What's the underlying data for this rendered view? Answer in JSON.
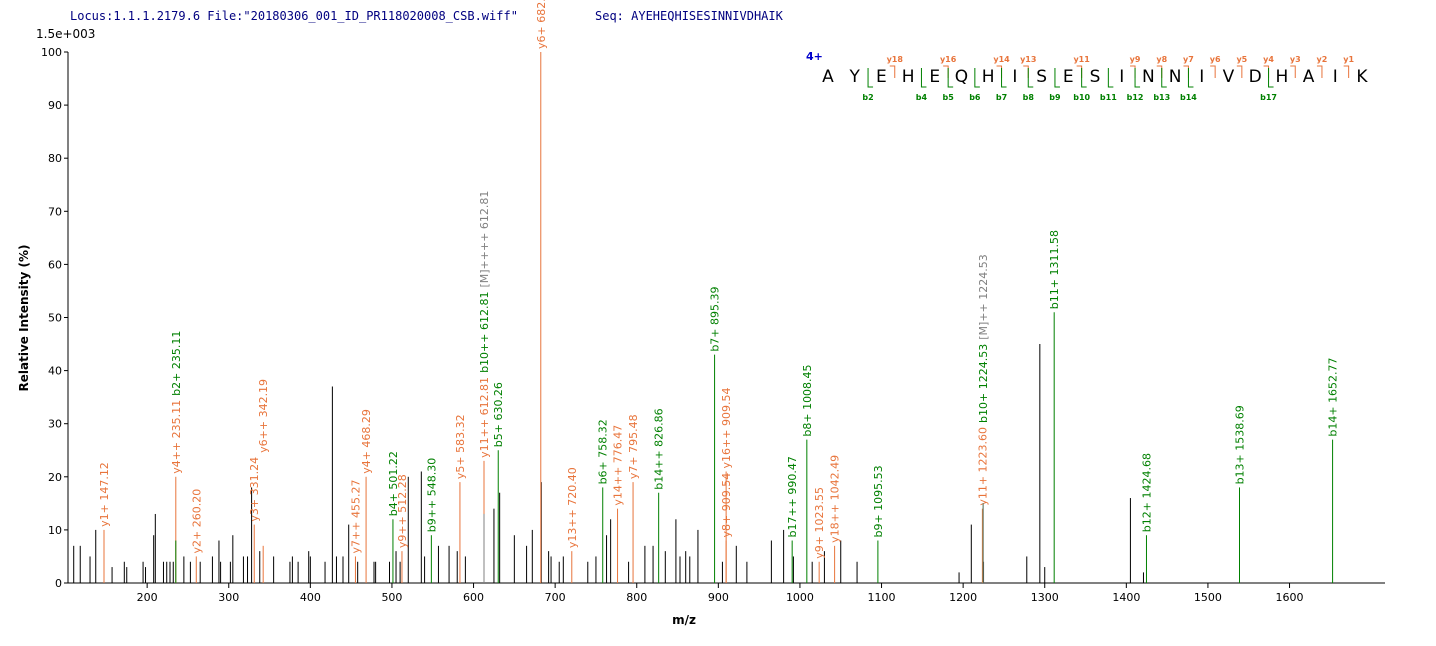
{
  "header": {
    "locus": "Locus:1.1.1.2179.6 File:\"20180306_001_ID_PR118020008_CSB.wiff\"",
    "seq": "Seq: AYEHEQHISESINNIVDHAIK"
  },
  "chart_data": {
    "type": "stem",
    "max_intensity_label": "1.5e+003",
    "xlabel": "m/z",
    "ylabel": "Relative  Intensity (%)",
    "xlim": [
      103,
      1717
    ],
    "ylim": [
      0,
      100
    ],
    "xticks": [
      200,
      300,
      400,
      500,
      600,
      700,
      800,
      900,
      1000,
      1100,
      1200,
      1300,
      1400,
      1500,
      1600
    ],
    "yticks": [
      0,
      10,
      20,
      30,
      40,
      50,
      60,
      70,
      80,
      90,
      100
    ],
    "series": [
      {
        "color": "#000000",
        "x": [
          110,
          118,
          130,
          137,
          157,
          172,
          175,
          195,
          198,
          208,
          210,
          220,
          224,
          228,
          232,
          245,
          253,
          265,
          280,
          288,
          290,
          302,
          305,
          318,
          323,
          328,
          338,
          355,
          375,
          378,
          385,
          398,
          400,
          418,
          427,
          432,
          440,
          447,
          458,
          478,
          480,
          497,
          505,
          510,
          520,
          536,
          540,
          557,
          570,
          580,
          590,
          625,
          632,
          650,
          665,
          672,
          683,
          692,
          695,
          705,
          710,
          740,
          750,
          763,
          768,
          790,
          810,
          820,
          835,
          848,
          853,
          860,
          865,
          875,
          905,
          922,
          935,
          965,
          980,
          992,
          1015,
          1030,
          1050,
          1070,
          1195,
          1210,
          1225,
          1278,
          1294,
          1300,
          1405,
          1421
        ],
        "values": [
          7,
          7,
          5,
          10,
          3,
          4,
          3,
          4,
          3,
          9,
          13,
          4,
          4,
          4,
          4,
          5,
          4,
          4,
          5,
          8,
          4,
          4,
          9,
          5,
          5,
          18,
          6,
          5,
          4,
          5,
          4,
          6,
          5,
          4,
          37,
          5,
          5,
          11,
          4,
          4,
          4,
          4,
          6,
          4,
          20,
          21,
          5,
          7,
          7,
          6,
          5,
          14,
          17,
          9,
          7,
          10,
          19,
          6,
          5,
          4,
          5,
          4,
          5,
          9,
          12,
          4,
          7,
          7,
          6,
          12,
          5,
          6,
          5,
          10,
          4,
          7,
          4,
          8,
          10,
          5,
          4,
          6,
          8,
          4,
          2,
          11,
          4,
          5,
          45,
          3,
          16,
          2
        ]
      },
      {
        "color": "#e8743b",
        "x": [
          147.12,
          235.11,
          260.2,
          331.24,
          342.19,
          455.27,
          468.29,
          512.28,
          583.32,
          612.81,
          682.4,
          720.4,
          776.47,
          795.48,
          909.54,
          909.54,
          1023.55,
          1042.49,
          1223.6
        ],
        "values": [
          10,
          20,
          5,
          11,
          7,
          5,
          20,
          6,
          19,
          23,
          100,
          6,
          14,
          19,
          8,
          21,
          4,
          7,
          14
        ],
        "labels": [
          "y1+ 147.12",
          "y4++ 235.11",
          "y2+ 260.20",
          "y3+ 331.24",
          "y6++ 342.19",
          "y7++ 455.27",
          "y4+ 468.29",
          "y9++ 512.28",
          "y5+ 583.32",
          "y11++ 612.81",
          "y6+ 682.40",
          "y13++ 720.40",
          "y14++ 776.47",
          "y7+ 795.48",
          "y8+ 909.54",
          "y16++ 909.54",
          "y9+ 1023.55",
          "y18++ 1042.49",
          "y11+ 1223.60"
        ]
      },
      {
        "color": "#008000",
        "x": [
          235.11,
          501.22,
          548.3,
          612.81,
          630.26,
          758.32,
          826.86,
          895.39,
          990.47,
          1008.45,
          1095.53,
          1224.53,
          1311.58,
          1424.68,
          1538.69,
          1652.77
        ],
        "values": [
          8,
          12,
          9,
          13,
          25,
          18,
          17,
          43,
          8,
          27,
          8,
          15,
          51,
          9,
          18,
          27
        ],
        "labels": [
          "b2+ 235.11",
          "b4+ 501.22",
          "b9++ 548.30",
          "b10++ 612.81",
          "b5+ 630.26",
          "b6+ 758.32",
          "b14++ 826.86",
          "b7+ 895.39",
          "b17++ 990.47",
          "b8+ 1008.45",
          "b9+ 1095.53",
          "b10+ 1224.53",
          "b11+ 1311.58",
          "b12+ 1424.68",
          "b13+ 1538.69",
          "b14+ 1652.77"
        ]
      },
      {
        "color": "#808080",
        "x": [
          612.81,
          1224.53
        ],
        "values": [
          13,
          15
        ],
        "labels": [
          "[M]++++ 612.81",
          "[M]++ 1224.53"
        ]
      }
    ]
  },
  "fragment_map": {
    "charge": "4+",
    "sequence": [
      "A",
      "Y",
      "E",
      "H",
      "E",
      "Q",
      "H",
      "I",
      "S",
      "E",
      "S",
      "I",
      "N",
      "N",
      "I",
      "V",
      "D",
      "H",
      "A",
      "I",
      "K"
    ],
    "y_labels": [
      null,
      null,
      "y18",
      null,
      "y16",
      null,
      "y14",
      "y13",
      null,
      "y11",
      null,
      "y9",
      "y8",
      "y7",
      "y6",
      "y5",
      "y4",
      "y3",
      "y2",
      "y1"
    ],
    "b_labels": [
      null,
      "b2",
      null,
      "b4",
      "b5",
      "b6",
      "b7",
      "b8",
      "b9",
      "b10",
      "b11",
      "b12",
      "b13",
      "b14",
      null,
      null,
      "b17",
      null,
      null,
      null
    ]
  }
}
